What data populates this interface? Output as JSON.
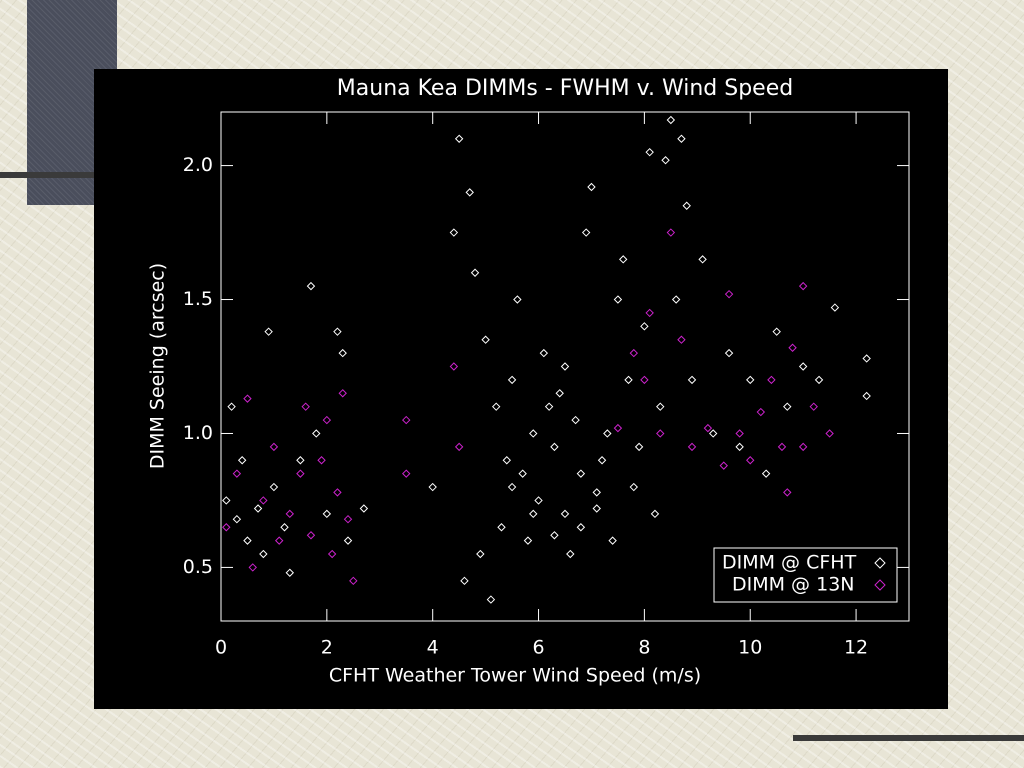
{
  "chart_data": {
    "type": "scatter",
    "title": "Mauna Kea DIMMs - FWHM v. Wind Speed",
    "xlabel": "CFHT Weather Tower Wind Speed (m/s)",
    "ylabel": "DIMM Seeing (arcsec)",
    "xlim": [
      0,
      13
    ],
    "xticks": [
      0,
      2,
      4,
      6,
      8,
      10,
      12
    ],
    "ylim": [
      0.3,
      2.2
    ],
    "yticks": [
      0.5,
      {
        "value": 1,
        "label": "1.0"
      },
      1.5,
      {
        "value": 2,
        "label": "2.0"
      }
    ],
    "legend": "lower right",
    "series": [
      {
        "name": "DIMM @ CFHT",
        "color": "#ffffff",
        "x": [
          0.1,
          0.2,
          0.3,
          0.4,
          0.5,
          0.7,
          0.8,
          0.9,
          1.0,
          1.2,
          1.3,
          1.5,
          1.7,
          1.8,
          2.0,
          2.2,
          2.3,
          2.4,
          2.7,
          4.0,
          4.4,
          4.5,
          4.6,
          4.7,
          4.8,
          4.9,
          5.0,
          5.1,
          5.2,
          5.3,
          5.4,
          5.5,
          5.6,
          5.7,
          5.8,
          5.9,
          6.0,
          6.1,
          6.2,
          6.3,
          6.4,
          6.5,
          6.6,
          6.7,
          6.8,
          6.9,
          7.0,
          7.1,
          7.2,
          7.3,
          7.4,
          7.5,
          7.6,
          7.7,
          7.8,
          7.9,
          8.0,
          8.1,
          8.2,
          8.3,
          8.4,
          8.5,
          8.6,
          8.7,
          8.8,
          8.9,
          9.1,
          9.3,
          9.6,
          9.8,
          10.0,
          10.3,
          10.5,
          10.7,
          11.0,
          11.3,
          11.6,
          12.2,
          12.2,
          6.5,
          5.5,
          6.8,
          7.1,
          5.9,
          6.3
        ],
        "values": [
          0.75,
          1.1,
          0.68,
          0.9,
          0.6,
          0.72,
          0.55,
          1.38,
          0.8,
          0.65,
          0.48,
          0.9,
          1.55,
          1.0,
          0.7,
          1.38,
          1.3,
          0.6,
          0.72,
          0.8,
          1.75,
          2.1,
          0.45,
          1.9,
          1.6,
          0.55,
          1.35,
          0.38,
          1.1,
          0.65,
          0.9,
          1.2,
          1.5,
          0.85,
          0.6,
          1.0,
          0.75,
          1.3,
          1.1,
          0.95,
          1.15,
          0.7,
          0.55,
          1.05,
          0.85,
          1.75,
          1.92,
          0.72,
          0.9,
          1.0,
          0.6,
          1.5,
          1.65,
          1.2,
          0.8,
          0.95,
          1.4,
          2.05,
          0.7,
          1.1,
          2.02,
          2.17,
          1.5,
          2.1,
          1.85,
          1.2,
          1.65,
          1.0,
          1.3,
          0.95,
          1.2,
          0.85,
          1.38,
          1.1,
          1.25,
          1.2,
          1.47,
          1.28,
          1.14,
          1.25,
          0.8,
          0.65,
          0.78,
          0.7,
          0.62
        ]
      },
      {
        "name": "DIMM @ 13N",
        "color": "#cc22cc",
        "x": [
          0.1,
          0.3,
          0.5,
          0.6,
          0.8,
          1.0,
          1.1,
          1.3,
          1.5,
          1.6,
          1.7,
          1.9,
          2.0,
          2.1,
          2.2,
          2.3,
          2.4,
          2.5,
          3.5,
          3.5,
          4.4,
          4.5,
          7.5,
          7.8,
          8.0,
          8.1,
          8.3,
          8.5,
          8.7,
          8.9,
          9.2,
          9.6,
          9.8,
          10.0,
          10.2,
          10.4,
          10.6,
          10.8,
          11.0,
          11.0,
          11.2,
          11.5,
          9.5,
          10.7
        ],
        "values": [
          0.65,
          0.85,
          1.13,
          0.5,
          0.75,
          0.95,
          0.6,
          0.7,
          0.85,
          1.1,
          0.62,
          0.9,
          1.05,
          0.55,
          0.78,
          1.15,
          0.68,
          0.45,
          1.05,
          0.85,
          1.25,
          0.95,
          1.02,
          1.3,
          1.2,
          1.45,
          1.0,
          1.75,
          1.35,
          0.95,
          1.02,
          1.52,
          1.0,
          0.9,
          1.08,
          1.2,
          0.95,
          1.32,
          1.55,
          0.95,
          1.1,
          1.0,
          0.88,
          0.78
        ]
      }
    ]
  }
}
